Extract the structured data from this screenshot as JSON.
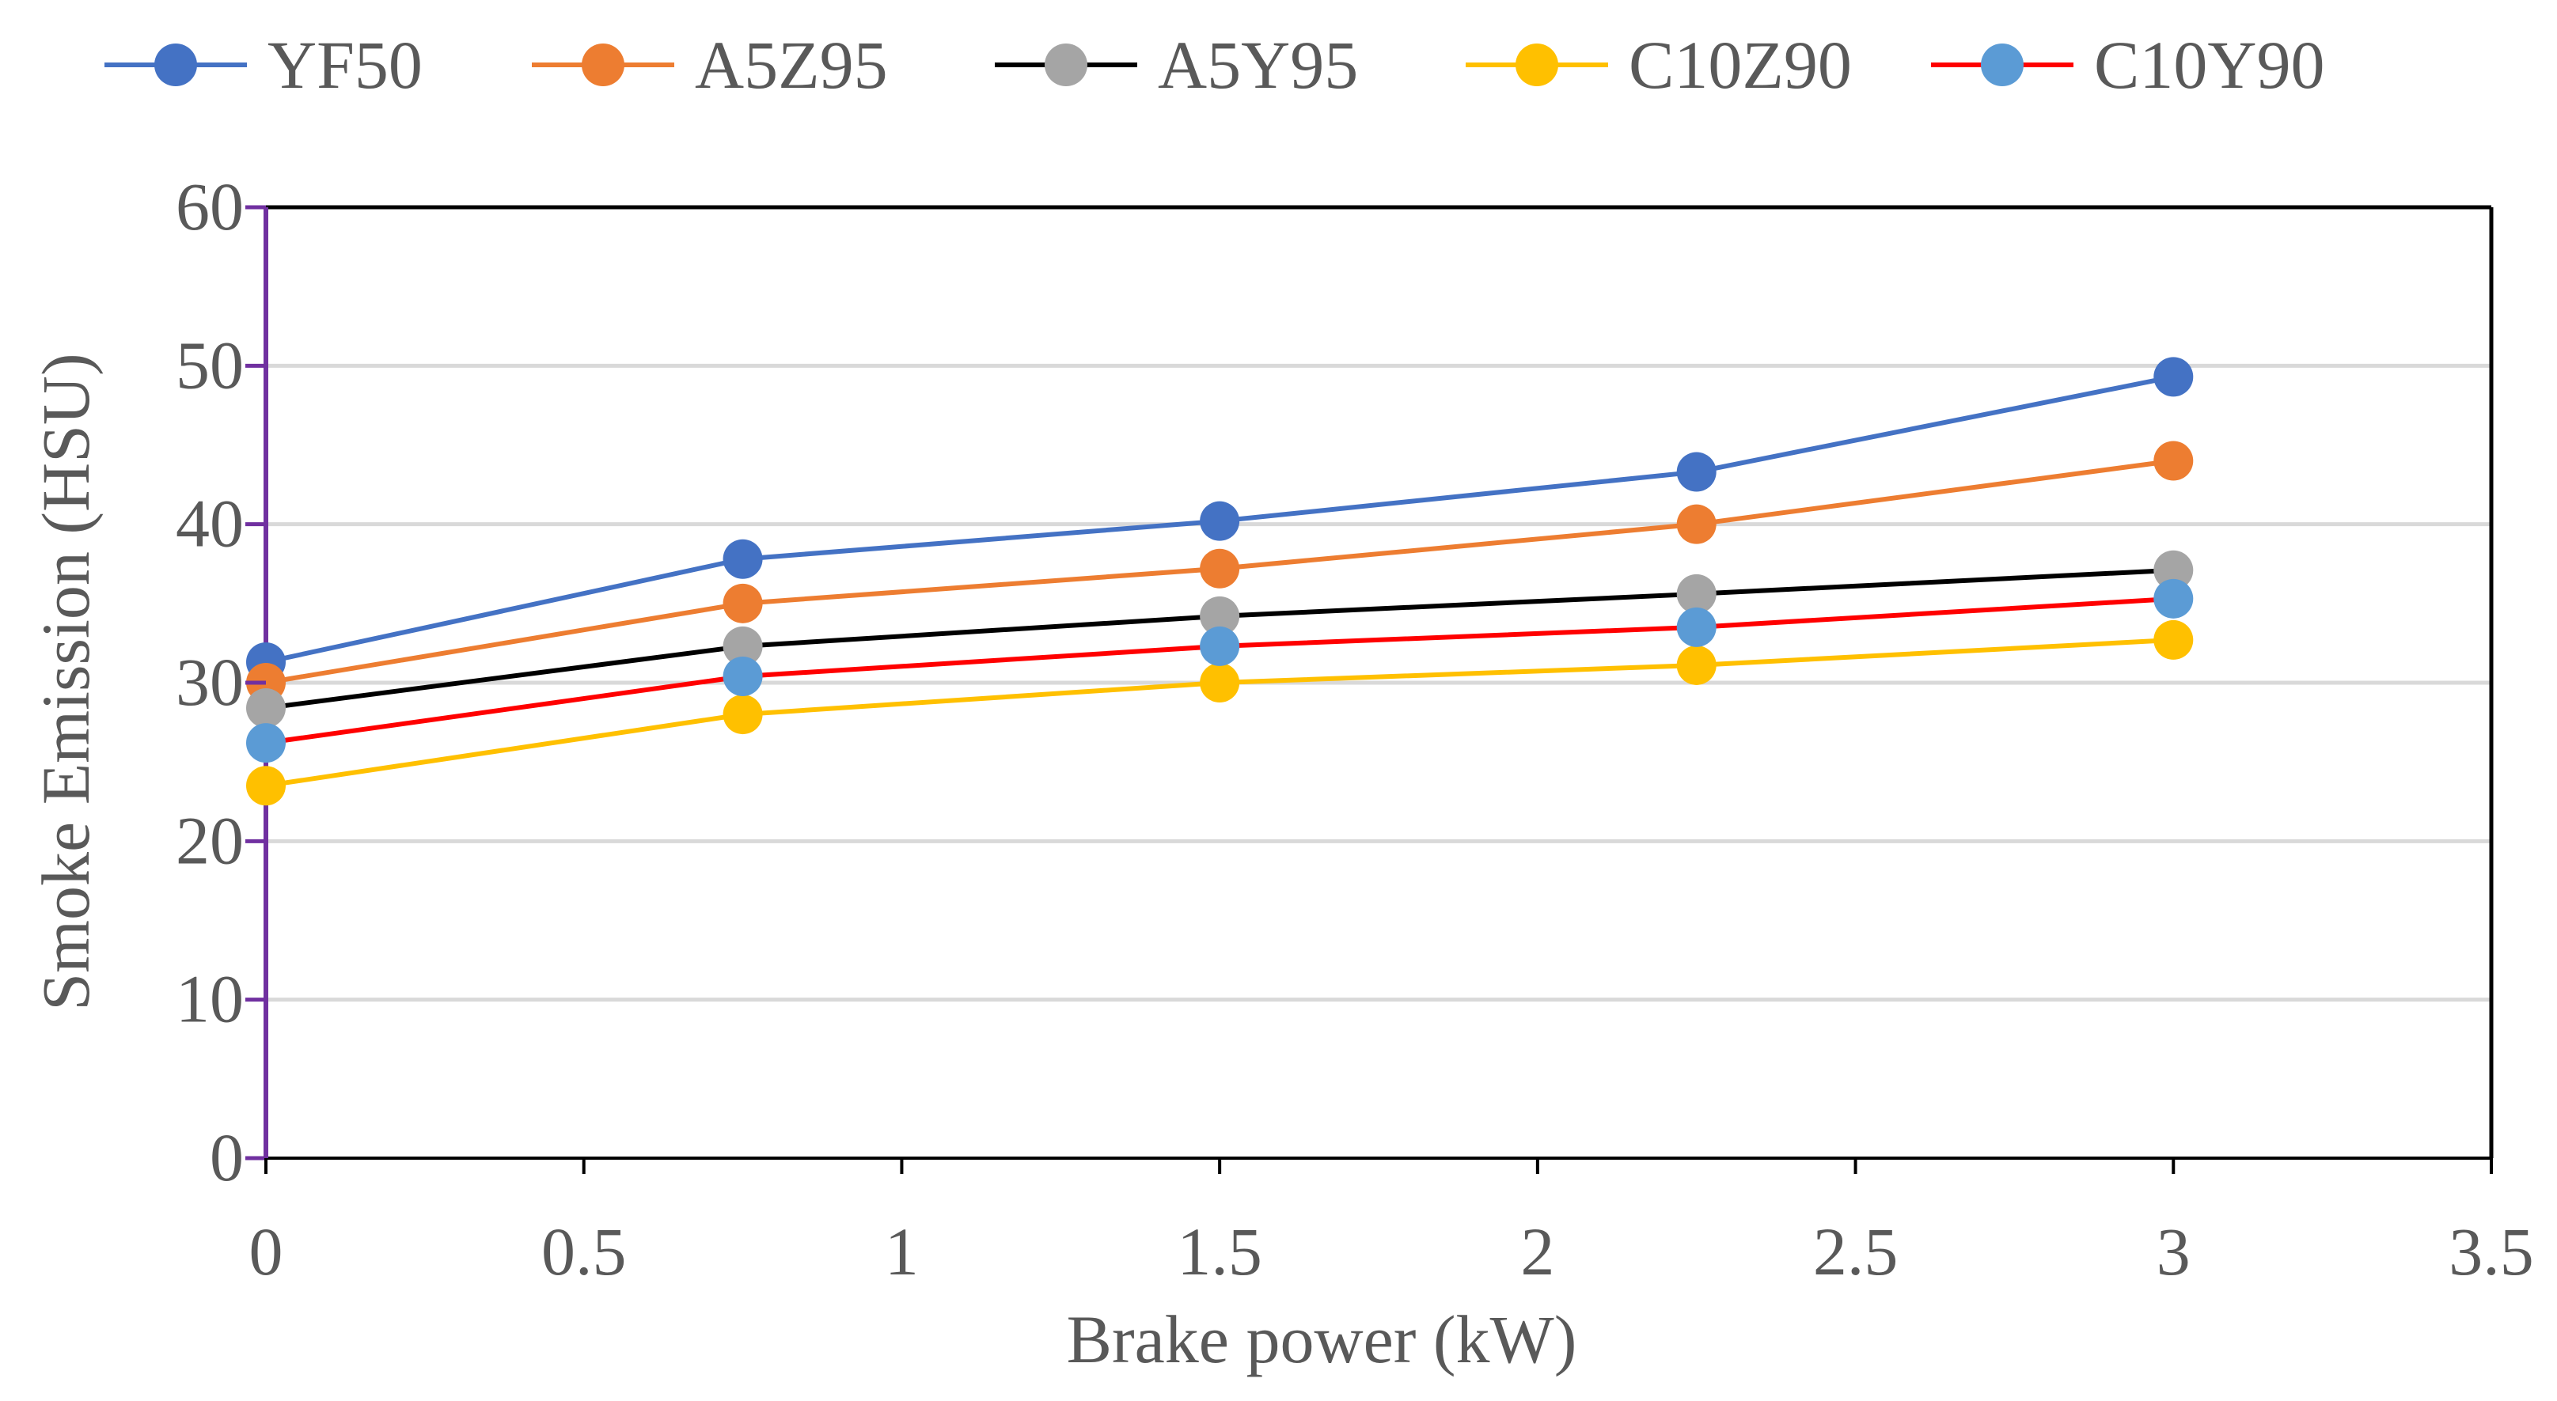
{
  "chart_data": {
    "type": "line",
    "title": "",
    "xlabel": "Brake power (kW)",
    "ylabel": "Smoke Emission  (HSU)",
    "xlim": [
      0,
      3.5
    ],
    "ylim": [
      0,
      60
    ],
    "x_ticks": [
      0,
      0.5,
      1,
      1.5,
      2,
      2.5,
      3,
      3.5
    ],
    "x_tick_labels": [
      "0",
      "0.5",
      "1",
      "1.5",
      "2",
      "2.5",
      "3",
      "3.5"
    ],
    "y_ticks": [
      0,
      10,
      20,
      30,
      40,
      50,
      60
    ],
    "y_tick_labels": [
      "0",
      "10",
      "20",
      "30",
      "40",
      "50",
      "60"
    ],
    "grid": "horizontal",
    "legend_position": "top",
    "x": [
      0,
      0.75,
      1.5,
      2.25,
      3
    ],
    "series": [
      {
        "name": "YF50",
        "values": [
          31.3,
          37.8,
          40.2,
          43.3,
          49.3
        ],
        "line_color": "#4472c4",
        "marker_color": "#4472c4"
      },
      {
        "name": "A5Z95",
        "values": [
          30.0,
          35.0,
          37.2,
          40.0,
          44.0
        ],
        "line_color": "#ed7d31",
        "marker_color": "#ed7d31"
      },
      {
        "name": "A5Y95",
        "values": [
          28.4,
          32.3,
          34.2,
          35.6,
          37.1
        ],
        "line_color": "#000000",
        "marker_color": "#a5a5a5"
      },
      {
        "name": "C10Z90",
        "values": [
          23.5,
          28.0,
          30.0,
          31.1,
          32.7
        ],
        "line_color": "#ffc000",
        "marker_color": "#ffc000"
      },
      {
        "name": "C10Y90",
        "values": [
          26.2,
          30.4,
          32.3,
          33.5,
          35.3
        ],
        "line_color": "#ff0000",
        "marker_color": "#5b9bd5"
      }
    ]
  },
  "colors": {
    "gridline": "#d9d9d9",
    "left_axis": "#7030a0",
    "frame": "#000000",
    "text": "#595959"
  }
}
